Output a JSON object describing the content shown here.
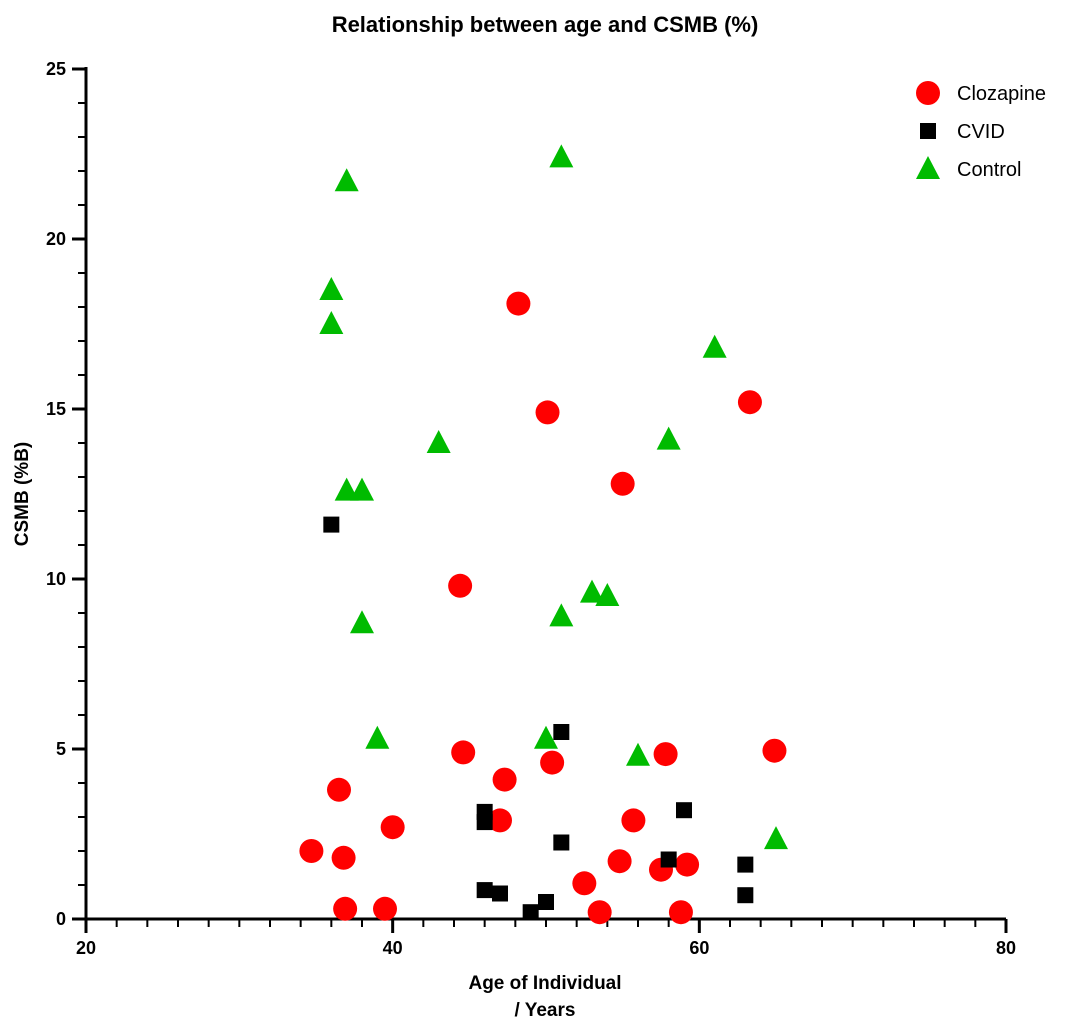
{
  "chart_data": {
    "type": "scatter",
    "title": "Relationship between age and CSMB (%)",
    "xlabel_lines": [
      "Age of Individual",
      "/ Years"
    ],
    "ylabel": "CSMB (%B)",
    "xlim": [
      20,
      80
    ],
    "ylim": [
      0,
      25
    ],
    "x_ticks": [
      20,
      40,
      60,
      80
    ],
    "y_ticks": [
      0,
      5,
      10,
      15,
      20,
      25
    ],
    "grid": false,
    "legend_position": "top-right",
    "series": [
      {
        "name": "Clozapine",
        "marker": "circle",
        "color": "#ff0000",
        "points": [
          [
            34.7,
            2.0
          ],
          [
            36.5,
            3.8
          ],
          [
            36.8,
            1.8
          ],
          [
            36.9,
            0.3
          ],
          [
            39.5,
            0.3
          ],
          [
            40.0,
            2.7
          ],
          [
            44.4,
            9.8
          ],
          [
            44.6,
            4.9
          ],
          [
            47.0,
            2.9
          ],
          [
            47.3,
            4.1
          ],
          [
            48.2,
            18.1
          ],
          [
            50.1,
            14.9
          ],
          [
            50.4,
            4.6
          ],
          [
            52.5,
            1.05
          ],
          [
            53.5,
            0.2
          ],
          [
            54.8,
            1.7
          ],
          [
            55.0,
            12.8
          ],
          [
            55.7,
            2.9
          ],
          [
            57.5,
            1.45
          ],
          [
            57.8,
            4.85
          ],
          [
            58.8,
            0.2
          ],
          [
            59.2,
            1.6
          ],
          [
            63.3,
            15.2
          ],
          [
            64.9,
            4.95
          ]
        ]
      },
      {
        "name": "CVID",
        "marker": "square",
        "color": "#000000",
        "points": [
          [
            36.0,
            11.6
          ],
          [
            46.0,
            3.15
          ],
          [
            46.0,
            2.85
          ],
          [
            46.0,
            0.85
          ],
          [
            47.0,
            0.75
          ],
          [
            49.0,
            0.2
          ],
          [
            50.0,
            0.5
          ],
          [
            51.0,
            5.5
          ],
          [
            51.0,
            2.25
          ],
          [
            58.0,
            1.75
          ],
          [
            59.0,
            3.2
          ],
          [
            63.0,
            1.6
          ],
          [
            63.0,
            0.7
          ]
        ]
      },
      {
        "name": "Control",
        "marker": "triangle",
        "color": "#00bb00",
        "points": [
          [
            36.0,
            18.5
          ],
          [
            36.0,
            17.5
          ],
          [
            37.0,
            21.7
          ],
          [
            37.0,
            12.6
          ],
          [
            38.0,
            12.6
          ],
          [
            38.0,
            8.7
          ],
          [
            39.0,
            5.3
          ],
          [
            43.0,
            14.0
          ],
          [
            50.0,
            5.3
          ],
          [
            51.0,
            22.4
          ],
          [
            51.0,
            8.9
          ],
          [
            53.0,
            9.6
          ],
          [
            54.0,
            9.5
          ],
          [
            56.0,
            4.8
          ],
          [
            58.0,
            14.1
          ],
          [
            61.0,
            16.8
          ],
          [
            65.0,
            2.35
          ]
        ]
      }
    ]
  }
}
